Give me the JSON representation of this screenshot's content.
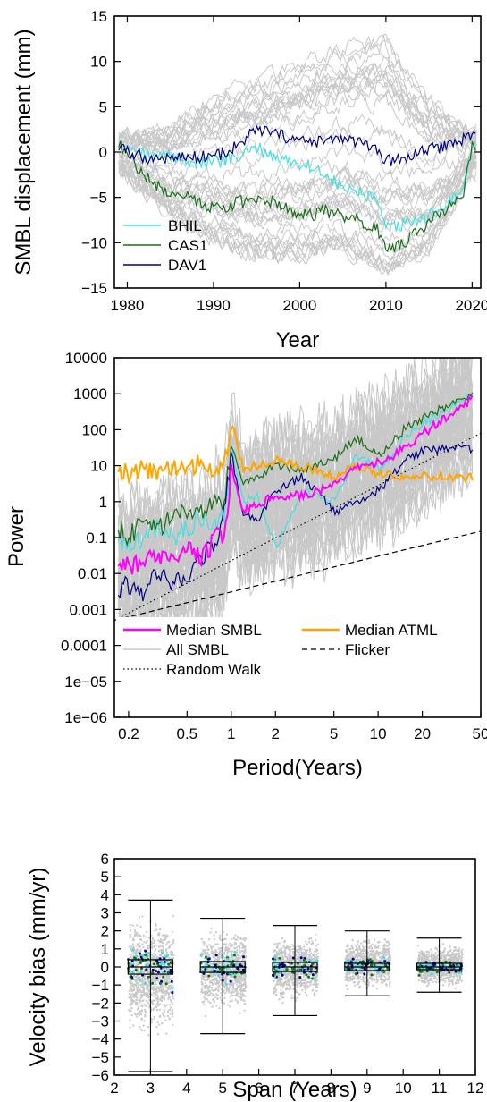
{
  "colors": {
    "gray": "#c8c8c8",
    "cyan": "#3fe0e0",
    "green": "#1a6e1a",
    "navy": "#000080",
    "magenta": "#ff00ff",
    "orange": "#ffa500"
  },
  "chart_data": [
    {
      "type": "line",
      "xlabel": "Year",
      "ylabel": "SMBL displacement (mm)",
      "xlim": [
        1978.5,
        2021
      ],
      "ylim": [
        -15,
        15
      ],
      "x_ticks": [
        "1980",
        "1990",
        "2000",
        "2010",
        "2020"
      ],
      "y_ticks": [
        "−15",
        "−10",
        "−5",
        "0",
        "5",
        "10",
        "15"
      ],
      "legend_position": "bottom-left",
      "background_series_count": 40,
      "background_envelope": {
        "x": [
          1979,
          1985,
          1990,
          1995,
          2000,
          2005,
          2010,
          2015,
          2020
        ],
        "min": [
          -2,
          -7,
          -10,
          -12,
          -12,
          -11,
          -14,
          -11,
          -2
        ],
        "max": [
          2,
          3,
          6,
          8,
          10,
          12,
          13,
          6,
          2
        ]
      },
      "series": [
        {
          "name": "BHIL",
          "color": "#3fe0e0",
          "x": [
            1979,
            1981,
            1983,
            1985,
            1987,
            1989,
            1991,
            1993,
            1995,
            1997,
            1999,
            2001,
            2003,
            2005,
            2007,
            2009,
            2010,
            2012,
            2014,
            2016,
            2018,
            2019,
            2020
          ],
          "y": [
            1,
            0.5,
            -0.5,
            -0.3,
            -1,
            -1.2,
            -1,
            -0.6,
            0.5,
            -0.5,
            -1,
            -1.5,
            -2.5,
            -4,
            -4.5,
            -5.5,
            -8.5,
            -8,
            -7.5,
            -6.5,
            -5,
            -4,
            0.5
          ]
        },
        {
          "name": "CAS1",
          "color": "#1a6e1a",
          "x": [
            1979,
            1981,
            1983,
            1985,
            1987,
            1989,
            1991,
            1993,
            1995,
            1997,
            1999,
            2001,
            2003,
            2005,
            2007,
            2009,
            2010,
            2012,
            2014,
            2016,
            2018,
            2019,
            2020
          ],
          "y": [
            0.8,
            -1.5,
            -3.5,
            -4.5,
            -4.5,
            -6,
            -6.2,
            -5.5,
            -5.5,
            -5.5,
            -6.5,
            -7,
            -6.5,
            -7,
            -7.5,
            -8.5,
            -11,
            -10,
            -8.5,
            -7,
            -5.5,
            -4.5,
            0.5
          ]
        },
        {
          "name": "DAV1",
          "color": "#000080",
          "x": [
            1979,
            1981,
            1983,
            1985,
            1987,
            1989,
            1991,
            1993,
            1995,
            1997,
            1999,
            2001,
            2003,
            2005,
            2007,
            2009,
            2010,
            2012,
            2014,
            2016,
            2018,
            2019,
            2020
          ],
          "y": [
            0.5,
            -0.3,
            -0.8,
            -0.5,
            -0.6,
            -0.4,
            -0.2,
            0.8,
            2.5,
            2,
            1.5,
            1,
            1.2,
            1.5,
            1,
            0,
            -1,
            -0.8,
            0,
            0.5,
            1,
            1.5,
            2
          ]
        }
      ]
    },
    {
      "type": "line",
      "log_scale": {
        "x": true,
        "y": true
      },
      "xlabel": "Period(Years)",
      "ylabel": "Power",
      "xlim": [
        0.16,
        50
      ],
      "ylim": [
        1e-06,
        10000
      ],
      "x_ticks": [
        {
          "v": 0.2,
          "label": "0.2"
        },
        {
          "v": 0.5,
          "label": "0.5"
        },
        {
          "v": 1,
          "label": "1"
        },
        {
          "v": 2,
          "label": "2"
        },
        {
          "v": 5,
          "label": "5"
        },
        {
          "v": 10,
          "label": "10"
        },
        {
          "v": 20,
          "label": "20"
        },
        {
          "v": 50,
          "label": "50"
        }
      ],
      "y_ticks": [
        {
          "v": 10000,
          "label": "10000"
        },
        {
          "v": 1000,
          "label": "1000"
        },
        {
          "v": 100,
          "label": "100"
        },
        {
          "v": 10,
          "label": "10"
        },
        {
          "v": 1,
          "label": "1"
        },
        {
          "v": 0.1,
          "label": "0.1"
        },
        {
          "v": 0.01,
          "label": "0.01"
        },
        {
          "v": 0.001,
          "label": "0.001"
        },
        {
          "v": 0.0001,
          "label": "0.0001"
        },
        {
          "v": 1e-05,
          "label": "1e−05"
        },
        {
          "v": 1e-06,
          "label": "1e−06"
        }
      ],
      "legend_position": "bottom",
      "legend": [
        {
          "label": "Median SMBL",
          "color": "#ff00ff",
          "style": "solid"
        },
        {
          "label": "Median ATML",
          "color": "#ffa500",
          "style": "solid"
        },
        {
          "label": "All SMBL",
          "color": "#c8c8c8",
          "style": "solid"
        },
        {
          "label": "Flicker",
          "color": "#000000",
          "style": "dashed"
        },
        {
          "label": "Random Walk",
          "color": "#000000",
          "style": "dotted"
        }
      ],
      "background_series_count": 40,
      "series": [
        {
          "name": "Median SMBL",
          "color": "#ff00ff",
          "x": [
            0.17,
            0.2,
            0.25,
            0.3,
            0.4,
            0.5,
            0.6,
            0.7,
            0.8,
            0.9,
            1,
            1.2,
            1.5,
            2,
            3,
            5,
            7,
            10,
            15,
            20,
            30,
            45
          ],
          "y": [
            0.02,
            0.015,
            0.02,
            0.025,
            0.03,
            0.04,
            0.03,
            0.05,
            0.1,
            0.15,
            8,
            0.6,
            0.8,
            1.5,
            1.5,
            3,
            8,
            12,
            30,
            80,
            250,
            800
          ]
        },
        {
          "name": "Median ATML",
          "color": "#ffa500",
          "x": [
            0.17,
            0.2,
            0.25,
            0.3,
            0.4,
            0.5,
            0.6,
            0.7,
            0.8,
            0.9,
            1,
            1.2,
            1.5,
            2,
            3,
            5,
            7,
            10,
            15,
            20,
            30,
            45
          ],
          "y": [
            8,
            5,
            10,
            6,
            8,
            10,
            12,
            9,
            8,
            12,
            200,
            8,
            10,
            15,
            10,
            5,
            10,
            6,
            5,
            5,
            5,
            4.5
          ]
        },
        {
          "name": "BHIL",
          "color": "#3fe0e0",
          "x": [
            0.17,
            0.2,
            0.25,
            0.3,
            0.4,
            0.5,
            0.6,
            0.7,
            0.8,
            0.9,
            1,
            1.2,
            1.5,
            2,
            3,
            5,
            7,
            10,
            15,
            20,
            30,
            45
          ],
          "y": [
            0.1,
            0.05,
            0.1,
            0.2,
            0.1,
            0.2,
            0.3,
            0.2,
            0.3,
            0.5,
            30,
            1,
            1.5,
            0.05,
            2,
            1,
            20,
            8,
            60,
            150,
            400,
            900
          ]
        },
        {
          "name": "CAS1",
          "color": "#1a6e1a",
          "x": [
            0.17,
            0.2,
            0.25,
            0.3,
            0.4,
            0.5,
            0.6,
            0.7,
            0.8,
            0.9,
            1,
            1.2,
            1.5,
            2,
            3,
            5,
            7,
            10,
            15,
            20,
            30,
            45
          ],
          "y": [
            0.2,
            0.1,
            0.3,
            0.2,
            0.3,
            0.5,
            0.4,
            0.6,
            0.8,
            1,
            40,
            3,
            5,
            10,
            8,
            15,
            60,
            20,
            100,
            200,
            500,
            850
          ]
        },
        {
          "name": "DAV1",
          "color": "#000080",
          "x": [
            0.17,
            0.2,
            0.25,
            0.3,
            0.4,
            0.5,
            0.6,
            0.7,
            0.8,
            0.9,
            1,
            1.2,
            1.5,
            2,
            3,
            5,
            7,
            10,
            15,
            20,
            30,
            45
          ],
          "y": [
            0.003,
            0.005,
            0.002,
            0.01,
            0.005,
            0.01,
            0.02,
            0.05,
            0.1,
            0.5,
            20,
            0.5,
            0.3,
            2,
            5,
            0.5,
            1,
            2,
            15,
            25,
            30,
            30
          ]
        }
      ],
      "reference_lines": [
        {
          "name": "Random Walk",
          "style": "dotted",
          "x": [
            0.16,
            50
          ],
          "y": [
            0.0005,
            80
          ]
        },
        {
          "name": "Flicker",
          "style": "dashed",
          "x": [
            0.16,
            50
          ],
          "y": [
            0.0005,
            0.15
          ]
        }
      ]
    },
    {
      "type": "scatter",
      "subtype": "box-plot-with-jitter",
      "xlabel": "Span (Years)",
      "ylabel": "Velocity bias (mm/yr)",
      "xlim": [
        2,
        12
      ],
      "ylim": [
        -6,
        6
      ],
      "x_ticks": [
        "2",
        "3",
        "4",
        "5",
        "6",
        "7",
        "8",
        "9",
        "10",
        "11",
        "12"
      ],
      "y_ticks": [
        "−6",
        "−5",
        "−4",
        "−3",
        "−2",
        "−1",
        "0",
        "1",
        "2",
        "3",
        "4",
        "5",
        "6"
      ],
      "boxes": [
        {
          "span": 3,
          "q1": -0.4,
          "median": 0,
          "q3": 0.4,
          "whisker_low": -5.8,
          "whisker_high": 3.7,
          "cloud_low": -4.2,
          "cloud_high": 3.2
        },
        {
          "span": 5,
          "q1": -0.3,
          "median": 0,
          "q3": 0.3,
          "whisker_low": -3.7,
          "whisker_high": 2.7,
          "cloud_low": -2.8,
          "cloud_high": 2.5
        },
        {
          "span": 7,
          "q1": -0.25,
          "median": 0,
          "q3": 0.25,
          "whisker_low": -2.7,
          "whisker_high": 2.3,
          "cloud_low": -2.0,
          "cloud_high": 2.0
        },
        {
          "span": 9,
          "q1": -0.2,
          "median": 0,
          "q3": 0.2,
          "whisker_low": -1.6,
          "whisker_high": 2.0,
          "cloud_low": -1.4,
          "cloud_high": 1.8
        },
        {
          "span": 11,
          "q1": -0.15,
          "median": 0,
          "q3": 0.2,
          "whisker_low": -1.4,
          "whisker_high": 1.6,
          "cloud_low": -1.2,
          "cloud_high": 1.4
        }
      ],
      "highlight_colors": [
        "#3fe0e0",
        "#1a6e1a",
        "#000080"
      ]
    }
  ]
}
